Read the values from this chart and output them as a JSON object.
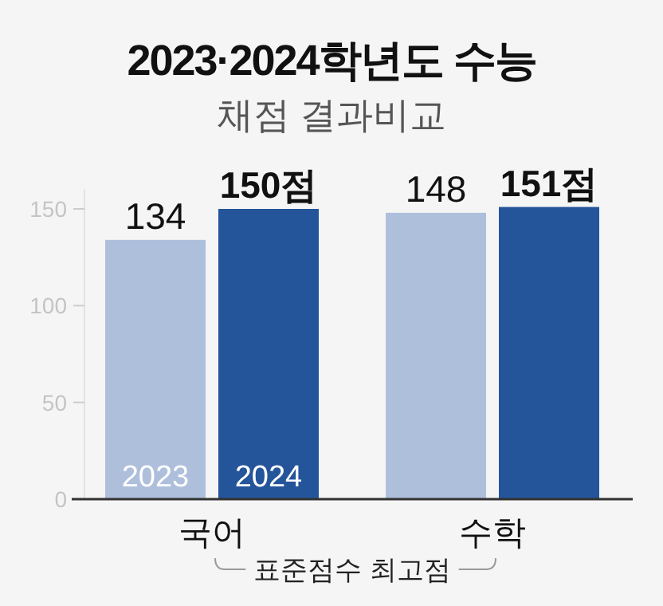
{
  "chart_data": {
    "type": "bar",
    "title": "2023·2024학년도 수능",
    "subtitle": "채점 결과비교",
    "xlabel": "표준점수 최고점",
    "categories": [
      "국어",
      "수학"
    ],
    "series": [
      {
        "name": "2023",
        "color": "#aebfdc",
        "values": [
          134,
          148
        ],
        "value_labels": [
          "134",
          "148"
        ]
      },
      {
        "name": "2024",
        "color": "#24549a",
        "values": [
          150,
          151
        ],
        "value_labels": [
          "150점",
          "151점"
        ]
      }
    ],
    "ylim": [
      0,
      160
    ],
    "yticks": [
      0,
      50,
      100,
      150
    ],
    "grid": false
  }
}
